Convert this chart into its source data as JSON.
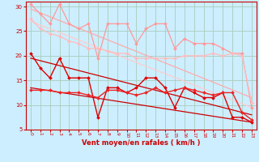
{
  "background_color": "#cceeff",
  "grid_color": "#aaccbb",
  "xlabel": "Vent moyen/en rafales ( km/h )",
  "xlabel_color": "#cc0000",
  "tick_color": "#cc0000",
  "xlim": [
    -0.5,
    23.5
  ],
  "ylim": [
    5,
    31
  ],
  "yticks": [
    5,
    10,
    15,
    20,
    25,
    30
  ],
  "xticks": [
    0,
    1,
    2,
    3,
    4,
    5,
    6,
    7,
    8,
    9,
    10,
    11,
    12,
    13,
    14,
    15,
    16,
    17,
    18,
    19,
    20,
    21,
    22,
    23
  ],
  "lines": [
    {
      "x": [
        0,
        1,
        2,
        3,
        4,
        5,
        6,
        7,
        8,
        9,
        10,
        11,
        12,
        13,
        14,
        15,
        16,
        17,
        18,
        19,
        20,
        21,
        22,
        23
      ],
      "y": [
        30.5,
        28.5,
        26.5,
        30.5,
        26.5,
        25.5,
        26.5,
        19.5,
        26.5,
        26.5,
        26.5,
        22.5,
        25.5,
        26.5,
        26.5,
        21.5,
        23.5,
        22.5,
        22.5,
        22.5,
        21.5,
        20.5,
        20.5,
        9.5
      ],
      "color": "#ff9999",
      "lw": 0.9,
      "marker": "D",
      "ms": 2.0
    },
    {
      "x": [
        0,
        1,
        2,
        3,
        4,
        5,
        6,
        7,
        8,
        9,
        10,
        11,
        12,
        13,
        14,
        15,
        16,
        17,
        18,
        19,
        20,
        21,
        22,
        23
      ],
      "y": [
        27.5,
        25.5,
        24.5,
        24.0,
        23.0,
        22.5,
        21.5,
        21.5,
        21.0,
        20.5,
        20.5,
        19.5,
        19.5,
        19.5,
        19.5,
        19.5,
        20.0,
        20.0,
        20.0,
        20.5,
        20.0,
        20.5,
        20.0,
        10.5
      ],
      "color": "#ffbbbb",
      "lw": 0.9,
      "marker": "D",
      "ms": 2.0
    },
    {
      "x": [
        0,
        23
      ],
      "y": [
        29.5,
        11.5
      ],
      "color": "#ffaaaa",
      "lw": 0.9,
      "marker": null,
      "ms": 0
    },
    {
      "x": [
        0,
        23
      ],
      "y": [
        27.0,
        9.5
      ],
      "color": "#ffcccc",
      "lw": 0.9,
      "marker": null,
      "ms": 0
    },
    {
      "x": [
        0,
        1,
        2,
        3,
        4,
        5,
        6,
        7,
        8,
        9,
        10,
        11,
        12,
        13,
        14,
        15,
        16,
        17,
        18,
        19,
        20,
        21,
        22,
        23
      ],
      "y": [
        20.5,
        17.5,
        15.5,
        19.5,
        15.5,
        15.5,
        15.5,
        7.5,
        13.5,
        13.5,
        12.5,
        13.5,
        15.5,
        15.5,
        13.5,
        9.5,
        13.5,
        12.5,
        11.5,
        11.5,
        12.5,
        7.5,
        7.5,
        6.5
      ],
      "color": "#dd0000",
      "lw": 1.0,
      "marker": "D",
      "ms": 2.0
    },
    {
      "x": [
        0,
        1,
        2,
        3,
        4,
        5,
        6,
        7,
        8,
        9,
        10,
        11,
        12,
        13,
        14,
        15,
        16,
        17,
        18,
        19,
        20,
        21,
        22,
        23
      ],
      "y": [
        13.0,
        13.0,
        13.0,
        12.5,
        12.5,
        12.5,
        12.0,
        11.5,
        13.0,
        13.0,
        12.5,
        12.0,
        12.5,
        13.5,
        12.5,
        13.0,
        13.5,
        13.0,
        12.5,
        12.0,
        12.5,
        12.5,
        8.5,
        7.0
      ],
      "color": "#ee2222",
      "lw": 1.0,
      "marker": "D",
      "ms": 2.0
    },
    {
      "x": [
        0,
        23
      ],
      "y": [
        19.5,
        8.0
      ],
      "color": "#cc0000",
      "lw": 0.9,
      "marker": null,
      "ms": 0
    },
    {
      "x": [
        0,
        23
      ],
      "y": [
        13.5,
        6.5
      ],
      "color": "#cc0000",
      "lw": 0.9,
      "marker": null,
      "ms": 0
    }
  ]
}
